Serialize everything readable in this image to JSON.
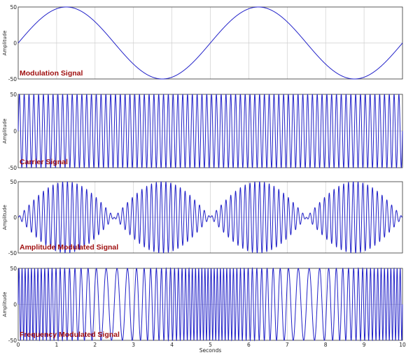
{
  "colors": {
    "signal": "#2020c8",
    "title": "#a01010",
    "grid": "#cfcfcf",
    "axis": "#333333",
    "background": "#ffffff"
  },
  "chart_data": [
    {
      "type": "line",
      "title": "Modulation Signal",
      "ylabel": "Amplitude",
      "ylim": [
        -50,
        50
      ],
      "yticks": [
        "50",
        "0",
        "-50"
      ],
      "xlim": [
        0,
        10
      ],
      "grid": true,
      "series": [
        {
          "function": "50*sin(2*pi*0.2*t)",
          "frequency_hz": 0.2,
          "amplitude": 50
        }
      ]
    },
    {
      "type": "line",
      "title": "Carrier Signal",
      "ylabel": "Amplitude",
      "ylim": [
        -50,
        50
      ],
      "yticks": [
        "50",
        "0",
        "-50"
      ],
      "xlim": [
        0,
        10
      ],
      "grid": true,
      "series": [
        {
          "function": "50*sin(2*pi*8*t)",
          "frequency_hz": 8,
          "amplitude": 50
        }
      ]
    },
    {
      "type": "line",
      "title": "Amplitude Modulated Signal",
      "ylabel": "Amplitude",
      "ylim": [
        -50,
        50
      ],
      "yticks": [
        "50",
        "0",
        "-50"
      ],
      "xlim": [
        0,
        10
      ],
      "grid": true,
      "series": [
        {
          "function": "50*sin(2*pi*0.2*t)*sin(2*pi*8*t)",
          "carrier_hz": 8,
          "modulation_hz": 0.2,
          "amplitude": 50
        }
      ]
    },
    {
      "type": "line",
      "title": "Frequency Modulated Signal",
      "ylabel": "Amplitude",
      "xlabel": "Seconds",
      "ylim": [
        -50,
        50
      ],
      "yticks": [
        "50",
        "0",
        "-50"
      ],
      "xlim": [
        0,
        10
      ],
      "xticks": [
        "0",
        "1",
        "2",
        "3",
        "4",
        "5",
        "6",
        "7",
        "8",
        "9",
        "10"
      ],
      "grid": true,
      "series": [
        {
          "function": "50*sin(2*pi*(8*t + (4.5/0.2)*sin(2*pi*0.2*t)/(2*pi)))",
          "carrier_hz": 8,
          "deviation_hz": 4.5,
          "modulation_hz": 0.2,
          "amplitude": 50
        }
      ]
    }
  ]
}
